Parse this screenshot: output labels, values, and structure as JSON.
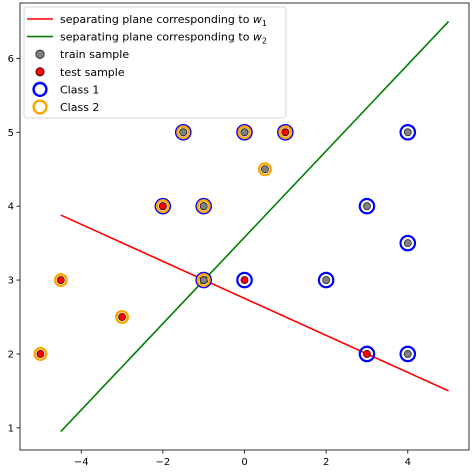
{
  "chart_data": {
    "type": "scatter",
    "title": "",
    "xlabel": "",
    "ylabel": "",
    "xlim": [
      -5.5,
      5.5
    ],
    "ylim": [
      0.7,
      6.75
    ],
    "xticks": [
      -4,
      -2,
      0,
      2,
      4
    ],
    "yticks": [
      1,
      2,
      3,
      4,
      5,
      6
    ],
    "x_tick_labels": [
      "−4",
      "−2",
      "0",
      "2",
      "4"
    ],
    "y_tick_labels": [
      "1",
      "2",
      "3",
      "4",
      "5",
      "6"
    ],
    "grid": false,
    "legend_position": "top-left",
    "colors": {
      "plane_w1": "#ff0000",
      "plane_w2": "#008000",
      "train_fill": "#808080",
      "test_fill": "#ff0000",
      "class1_ring": "#0000ff",
      "class2_ring": "#ffa500"
    },
    "legend": [
      {
        "type": "line",
        "color": "#ff0000",
        "label": "separating plane corresponding to ",
        "math": "w",
        "sub": "1"
      },
      {
        "type": "line",
        "color": "#008000",
        "label": "separating plane corresponding to ",
        "math": "w",
        "sub": "2"
      },
      {
        "type": "point",
        "fill": "#808080",
        "label": "train sample"
      },
      {
        "type": "point",
        "fill": "#ff0000",
        "label": "test sample"
      },
      {
        "type": "ring",
        "color": "#0000ff",
        "label": "Class 1"
      },
      {
        "type": "ring",
        "color": "#ffa500",
        "label": "Class 2"
      }
    ],
    "lines": [
      {
        "name": "separating plane corresponding to w1",
        "color": "#ff0000",
        "x": [
          -4.5,
          5.0
        ],
        "y": [
          3.88,
          1.5
        ]
      },
      {
        "name": "separating plane corresponding to w2",
        "color": "#008000",
        "x": [
          -4.5,
          5.0
        ],
        "y": [
          0.95,
          6.5
        ]
      }
    ],
    "points": [
      {
        "x": 4,
        "y": 5,
        "class": 1,
        "set": "train"
      },
      {
        "x": 3,
        "y": 4,
        "class": 1,
        "set": "train"
      },
      {
        "x": 4,
        "y": 3.5,
        "class": 1,
        "set": "train"
      },
      {
        "x": 2,
        "y": 3,
        "class": 1,
        "set": "train"
      },
      {
        "x": 4,
        "y": 2,
        "class": 1,
        "set": "train"
      },
      {
        "x": 3,
        "y": 2,
        "class": 1,
        "set": "test"
      },
      {
        "x": 0,
        "y": 3,
        "class": 1,
        "set": "test"
      },
      {
        "x": -1,
        "y": 3,
        "class": 1,
        "set": "train"
      },
      {
        "x": -1,
        "y": 4,
        "class": 1,
        "set": "train"
      },
      {
        "x": -2,
        "y": 4,
        "class": 1,
        "set": "test"
      },
      {
        "x": -1.5,
        "y": 5,
        "class": 1,
        "set": "train"
      },
      {
        "x": 0,
        "y": 5,
        "class": 1,
        "set": "train"
      },
      {
        "x": 1,
        "y": 5,
        "class": 1,
        "set": "test"
      },
      {
        "x": -1.5,
        "y": 5,
        "class": 2,
        "set": "train"
      },
      {
        "x": 0,
        "y": 5,
        "class": 2,
        "set": "train"
      },
      {
        "x": 1,
        "y": 5,
        "class": 2,
        "set": "test"
      },
      {
        "x": 0.5,
        "y": 4.5,
        "class": 2,
        "set": "train"
      },
      {
        "x": -2,
        "y": 4,
        "class": 2,
        "set": "test"
      },
      {
        "x": -1,
        "y": 4,
        "class": 2,
        "set": "train"
      },
      {
        "x": -1,
        "y": 3,
        "class": 2,
        "set": "train"
      },
      {
        "x": -4.5,
        "y": 3,
        "class": 2,
        "set": "test"
      },
      {
        "x": -3,
        "y": 2.5,
        "class": 2,
        "set": "test"
      },
      {
        "x": -5,
        "y": 2,
        "class": 2,
        "set": "test"
      }
    ]
  }
}
